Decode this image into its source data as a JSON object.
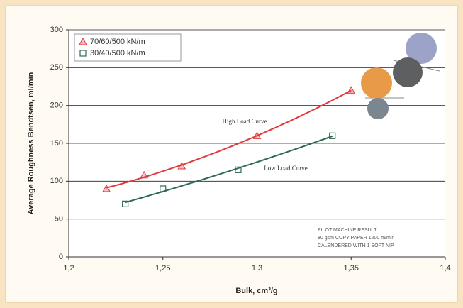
{
  "chart_data": {
    "type": "scatter",
    "x_label": "Bulk, cm³/g",
    "y_label": "Average Roughness Bendtsen, ml/min",
    "xlim": [
      1.2,
      1.4
    ],
    "xticks": [
      {
        "value": 1.2,
        "label": "1,2"
      },
      {
        "value": 1.25,
        "label": "1,25"
      },
      {
        "value": 1.3,
        "label": "1,3"
      },
      {
        "value": 1.35,
        "label": "1,35"
      },
      {
        "value": 1.4,
        "label": "1,4"
      }
    ],
    "ylim": [
      0,
      300
    ],
    "yticks": [
      0,
      50,
      100,
      150,
      200,
      250,
      300
    ],
    "grid": true,
    "legend": "top-left",
    "trend": "quadratic",
    "series": [
      {
        "name": "70/60/500 kN/m",
        "color": "#e03a3e",
        "marker": "triangle",
        "x": [
          1.22,
          1.24,
          1.26,
          1.3,
          1.35
        ],
        "values": [
          90,
          108,
          120,
          160,
          220
        ]
      },
      {
        "name": "30/40/500 kN/m",
        "color": "#2e6b4f",
        "marker": "square",
        "x": [
          1.23,
          1.25,
          1.29,
          1.34
        ],
        "values": [
          70,
          90,
          115,
          160
        ]
      }
    ],
    "annotations": [
      "High Load Curve",
      "Low Load Curve"
    ],
    "note": [
      "PILOT MACHINE RESULT",
      "80 gsm COPY PAPER 1200 m/min",
      "CALENDERED WITH 1 SOFT NIP"
    ]
  }
}
